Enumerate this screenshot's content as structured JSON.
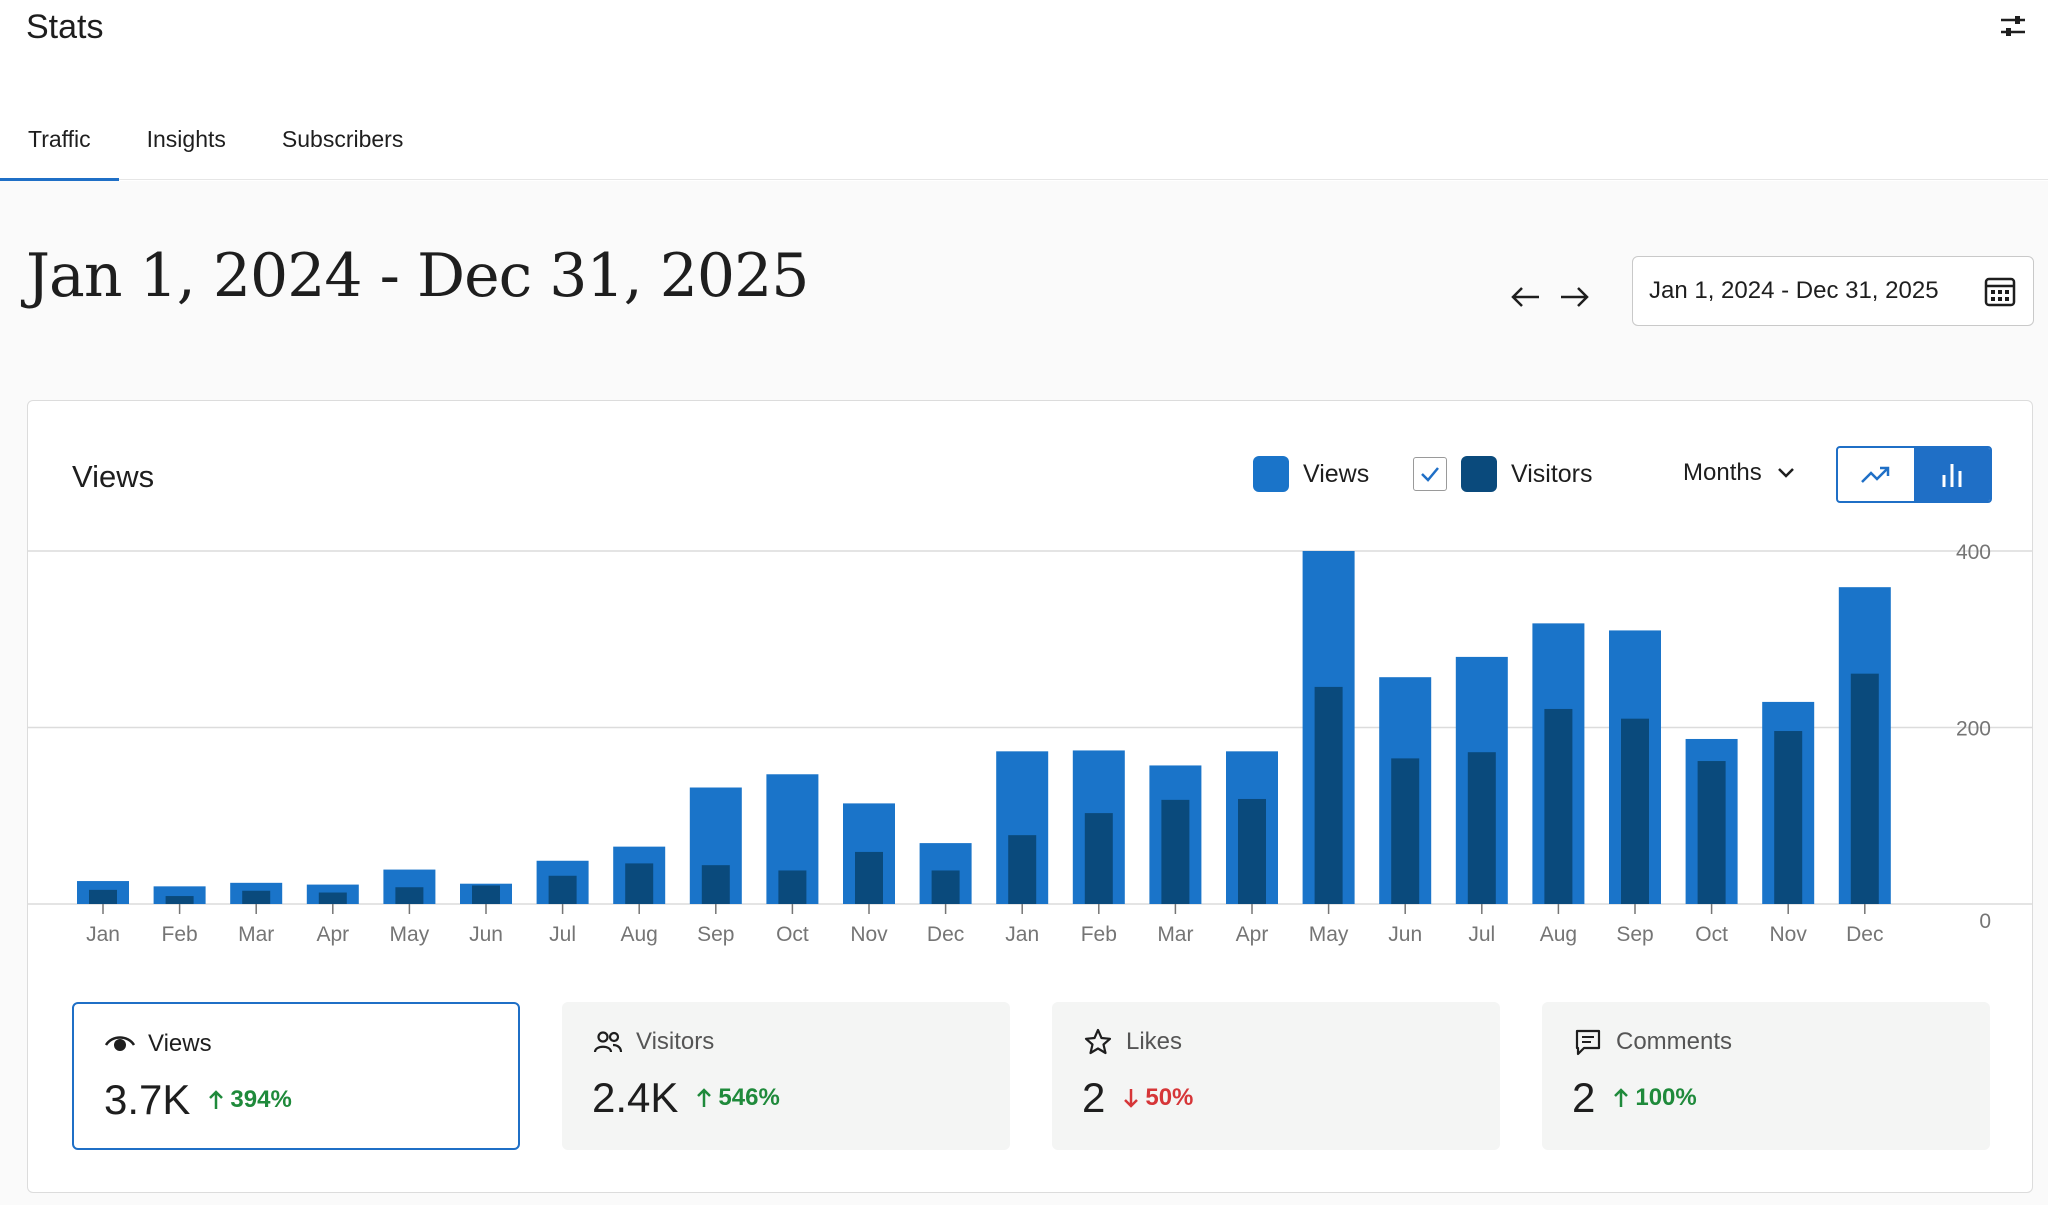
{
  "header": {
    "title": "Stats",
    "settings_icon": "sliders-icon"
  },
  "tabs": [
    {
      "label": "Traffic",
      "active": true
    },
    {
      "label": "Insights",
      "active": false
    },
    {
      "label": "Subscribers",
      "active": false
    }
  ],
  "range": {
    "title": "Jan 1, 2024 - Dec 31, 2025",
    "picker_value": "Jan 1, 2024 - Dec 31, 2025"
  },
  "card": {
    "title": "Views",
    "legend": {
      "views_label": "Views",
      "visitors_label": "Visitors",
      "visitors_checked": true
    },
    "period": "Months"
  },
  "colors": {
    "accent": "#1f6fc6",
    "views_bar": "#1a74c9",
    "visitors_bar": "#0a4a7c",
    "up": "#1f8a3b",
    "down": "#d63638"
  },
  "chart_data": {
    "type": "bar",
    "categories": [
      "Jan",
      "Feb",
      "Mar",
      "Apr",
      "May",
      "Jun",
      "Jul",
      "Aug",
      "Sep",
      "Oct",
      "Nov",
      "Dec",
      "Jan",
      "Feb",
      "Mar",
      "Apr",
      "May",
      "Jun",
      "Jul",
      "Aug",
      "Sep",
      "Oct",
      "Nov",
      "Dec"
    ],
    "series": [
      {
        "name": "Views",
        "values": [
          26,
          20,
          24,
          22,
          39,
          23,
          49,
          65,
          132,
          147,
          114,
          69,
          173,
          174,
          157,
          173,
          400,
          257,
          280,
          318,
          310,
          187,
          229,
          359
        ]
      },
      {
        "name": "Visitors",
        "values": [
          16,
          9,
          15,
          13,
          19,
          21,
          32,
          46,
          44,
          38,
          59,
          38,
          78,
          103,
          118,
          119,
          246,
          165,
          172,
          221,
          210,
          162,
          196,
          261
        ]
      }
    ],
    "ylim": [
      0,
      400
    ],
    "yticks": [
      "0",
      "200",
      "400"
    ],
    "grid": true,
    "axis_side": "right"
  },
  "stats": [
    {
      "id": "views",
      "label": "Views",
      "icon": "eye-icon",
      "value": "3.7K",
      "change": "394%",
      "direction": "up",
      "selected": true
    },
    {
      "id": "visitors",
      "label": "Visitors",
      "icon": "people-icon",
      "value": "2.4K",
      "change": "546%",
      "direction": "up",
      "selected": false
    },
    {
      "id": "likes",
      "label": "Likes",
      "icon": "star-icon",
      "value": "2",
      "change": "50%",
      "direction": "down",
      "selected": false
    },
    {
      "id": "comments",
      "label": "Comments",
      "icon": "comment-icon",
      "value": "2",
      "change": "100%",
      "direction": "up",
      "selected": false
    }
  ]
}
